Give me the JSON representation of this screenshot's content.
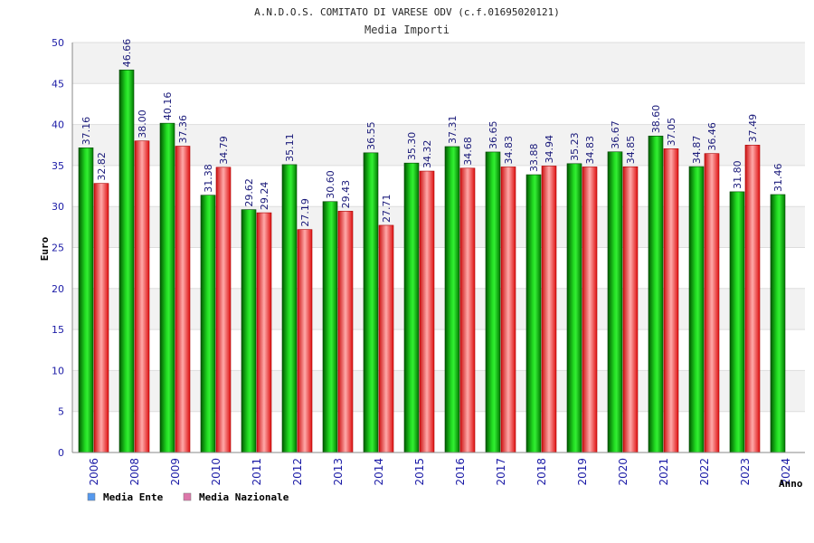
{
  "chart_data": {
    "type": "bar",
    "title": "A.N.D.O.S. COMITATO DI VARESE ODV (c.f.01695020121)",
    "subtitle": "Media Importi",
    "xlabel": "Anno",
    "ylabel": "Euro",
    "ylim": [
      0,
      50
    ],
    "yticks": [
      "0",
      "5",
      "10",
      "15",
      "20",
      "25",
      "30",
      "35",
      "40",
      "45",
      "50"
    ],
    "grid": true,
    "legend_position": "bottom-left",
    "categories": [
      "2006",
      "2008",
      "2009",
      "2010",
      "2011",
      "2012",
      "2013",
      "2014",
      "2015",
      "2016",
      "2017",
      "2018",
      "2019",
      "2020",
      "2021",
      "2022",
      "2023",
      "2024"
    ],
    "series": [
      {
        "name": "Media Ente",
        "color": "#00c000",
        "legend_color": "#5599ee",
        "values": [
          37.16,
          46.66,
          40.16,
          31.38,
          29.62,
          35.11,
          30.6,
          36.55,
          35.3,
          37.31,
          36.65,
          33.88,
          35.23,
          36.67,
          38.6,
          34.87,
          31.8,
          31.46
        ],
        "labels": [
          "37.16",
          "46.66",
          "40.16",
          "31.38",
          "29.62",
          "35.11",
          "30.60",
          "36.55",
          "35.30",
          "37.31",
          "36.65",
          "33.88",
          "35.23",
          "36.67",
          "38.60",
          "34.87",
          "31.80",
          "31.46"
        ]
      },
      {
        "name": "Media Nazionale",
        "color": "#ee2222",
        "legend_color": "#dd77aa",
        "values": [
          32.82,
          38.0,
          37.36,
          34.79,
          29.24,
          27.19,
          29.43,
          27.71,
          34.32,
          34.68,
          34.83,
          34.94,
          34.83,
          34.85,
          37.05,
          36.46,
          37.49,
          null
        ],
        "labels": [
          "32.82",
          "38.00",
          "37.36",
          "34.79",
          "29.24",
          "27.19",
          "29.43",
          "27.71",
          "34.32",
          "34.68",
          "34.83",
          "34.94",
          "34.83",
          "34.85",
          "37.05",
          "36.46",
          "37.49",
          null
        ]
      }
    ]
  }
}
